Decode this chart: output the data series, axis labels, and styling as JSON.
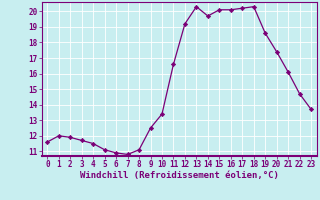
{
  "x": [
    0,
    1,
    2,
    3,
    4,
    5,
    6,
    7,
    8,
    9,
    10,
    11,
    12,
    13,
    14,
    15,
    16,
    17,
    18,
    19,
    20,
    21,
    22,
    23
  ],
  "y": [
    11.6,
    12.0,
    11.9,
    11.7,
    11.5,
    11.1,
    10.9,
    10.8,
    11.1,
    12.5,
    13.4,
    16.6,
    19.2,
    20.3,
    19.7,
    20.1,
    20.1,
    20.2,
    20.3,
    18.6,
    17.4,
    16.1,
    14.7,
    13.7
  ],
  "line_color": "#7b0077",
  "marker": "D",
  "marker_size": 2.2,
  "bg_color": "#c8eef0",
  "grid_color": "#ffffff",
  "xlabel": "Windchill (Refroidissement éolien,°C)",
  "ylim": [
    10.7,
    20.6
  ],
  "xlim": [
    -0.5,
    23.5
  ],
  "yticks": [
    11,
    12,
    13,
    14,
    15,
    16,
    17,
    18,
    19,
    20
  ],
  "xticks": [
    0,
    1,
    2,
    3,
    4,
    5,
    6,
    7,
    8,
    9,
    10,
    11,
    12,
    13,
    14,
    15,
    16,
    17,
    18,
    19,
    20,
    21,
    22,
    23
  ],
  "tick_label_color": "#7b0077",
  "tick_label_fontsize": 5.5,
  "xlabel_fontsize": 6.5,
  "spine_color": "#7b0077",
  "line_width": 0.9,
  "bottom_spine_color": "#7b0077"
}
